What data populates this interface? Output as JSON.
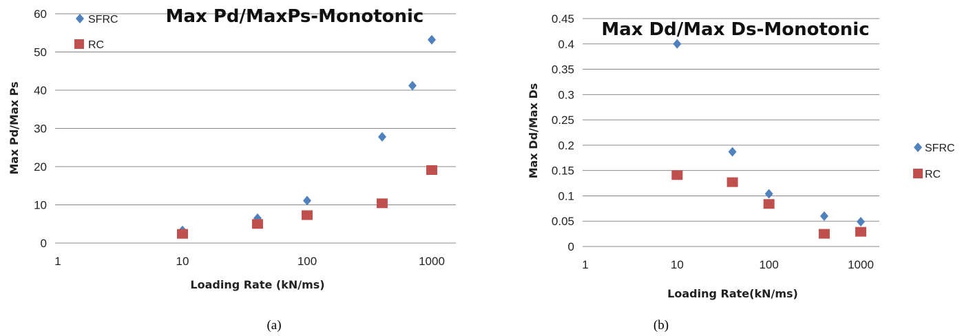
{
  "chart_data": [
    {
      "type": "scatter",
      "title": "Max Pd/MaxPs-Monotonic",
      "xlabel": "Loading Rate (kN/ms)",
      "ylabel": "Max Pd/Max Ps",
      "xscale": "log",
      "xlim": [
        1,
        1000
      ],
      "ylim": [
        0,
        60
      ],
      "xticks": [
        "1",
        "10",
        "100",
        "1000"
      ],
      "yticks": [
        "0",
        "10",
        "20",
        "30",
        "40",
        "50",
        "60"
      ],
      "grid": true,
      "legend_position": "top-left",
      "caption": "(a)",
      "series": [
        {
          "name": "SFRC",
          "marker": "diamond",
          "color": "#4f81bd",
          "x": [
            10,
            40,
            100,
            400,
            700,
            1000
          ],
          "y": [
            3.3,
            6.5,
            11.1,
            27.8,
            41.2,
            53.2
          ]
        },
        {
          "name": "RC",
          "marker": "square",
          "color": "#c0504d",
          "x": [
            10,
            40,
            100,
            400,
            1000
          ],
          "y": [
            2.4,
            5.0,
            7.3,
            10.4,
            19.1
          ]
        }
      ]
    },
    {
      "type": "scatter",
      "title": "Max Dd/Max Ds-Monotonic",
      "xlabel": "Loading Rate(kN/ms)",
      "ylabel": "Max Dd/Max Ds",
      "xscale": "log",
      "xlim": [
        1,
        1000
      ],
      "ylim": [
        0,
        0.45
      ],
      "xticks": [
        "1",
        "10",
        "100",
        "1000"
      ],
      "yticks": [
        "0",
        "0.05",
        "0.1",
        "0.15",
        "0.2",
        "0.25",
        "0.3",
        "0.35",
        "0.4",
        "0.45"
      ],
      "grid": true,
      "legend_position": "right",
      "caption": "(b)",
      "series": [
        {
          "name": "SFRC",
          "marker": "diamond",
          "color": "#4f81bd",
          "x": [
            10,
            40,
            100,
            400,
            1000
          ],
          "y": [
            0.4,
            0.187,
            0.104,
            0.06,
            0.049
          ]
        },
        {
          "name": "RC",
          "marker": "square",
          "color": "#c0504d",
          "x": [
            10,
            40,
            100,
            400,
            1000
          ],
          "y": [
            0.141,
            0.127,
            0.084,
            0.025,
            0.029
          ]
        }
      ]
    }
  ]
}
